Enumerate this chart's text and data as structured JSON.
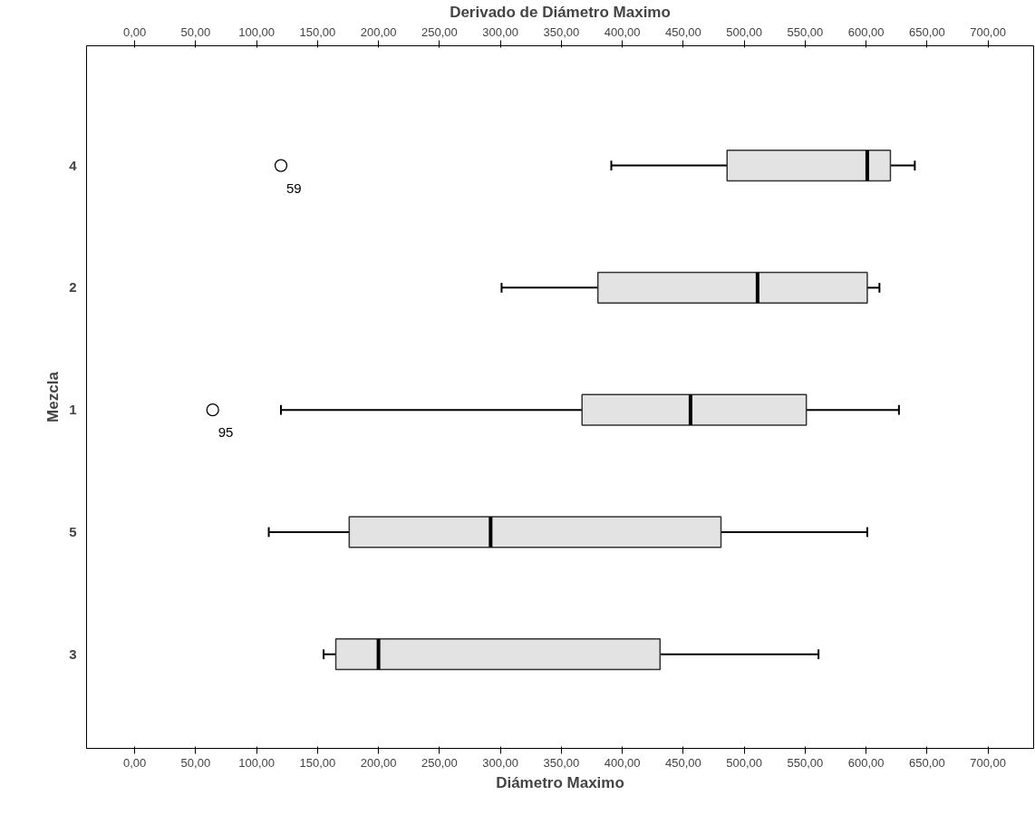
{
  "chart_data": {
    "type": "box",
    "orientation": "horizontal",
    "xlabel": "Diámetro Maximo",
    "ylabel": "Mezcla",
    "x2label": "Derivado de Diámetro Maximo",
    "categories": [
      "4",
      "2",
      "1",
      "5",
      "3"
    ],
    "boxes": [
      {
        "low": 391,
        "q1": 486,
        "median": 601,
        "q3": 620,
        "high": 640,
        "outliers": [
          120
        ]
      },
      {
        "low": 301,
        "q1": 380,
        "median": 511,
        "q3": 601,
        "high": 611
      },
      {
        "low": 120,
        "q1": 367,
        "median": 456,
        "q3": 551,
        "high": 627,
        "outliers": [
          64
        ]
      },
      {
        "low": 110,
        "q1": 176,
        "median": 292,
        "q3": 481,
        "high": 601
      },
      {
        "low": 155,
        "q1": 165,
        "median": 200,
        "q3": 431,
        "high": 561
      }
    ],
    "color": "#e3e3e3",
    "xlim": [
      -39.5,
      737.5
    ],
    "xticks": [
      {
        "value": 0,
        "label": "0,00"
      },
      {
        "value": 50,
        "label": "50,00"
      },
      {
        "value": 100,
        "label": "100,00"
      },
      {
        "value": 150,
        "label": "150,00"
      },
      {
        "value": 200,
        "label": "200,00"
      },
      {
        "value": 250,
        "label": "250,00"
      },
      {
        "value": 300,
        "label": "300,00"
      },
      {
        "value": 350,
        "label": "350,00"
      },
      {
        "value": 400,
        "label": "400,00"
      },
      {
        "value": 450,
        "label": "450,00"
      },
      {
        "value": 500,
        "label": "500,00"
      },
      {
        "value": 550,
        "label": "550,00"
      },
      {
        "value": 600,
        "label": "600,00"
      },
      {
        "value": 650,
        "label": "650,00"
      },
      {
        "value": 700,
        "label": "700,00"
      }
    ],
    "x2lim": [
      -39.5,
      737.5
    ],
    "x2ticks": [
      {
        "value": 0,
        "label": "0,00"
      },
      {
        "value": 50,
        "label": "50,00"
      },
      {
        "value": 100,
        "label": "100,00"
      },
      {
        "value": 150,
        "label": "150,00"
      },
      {
        "value": 200,
        "label": "200,00"
      },
      {
        "value": 250,
        "label": "250,00"
      },
      {
        "value": 300,
        "label": "300,00"
      },
      {
        "value": 350,
        "label": "350,00"
      },
      {
        "value": 400,
        "label": "400,00"
      },
      {
        "value": 450,
        "label": "450,00"
      },
      {
        "value": 500,
        "label": "500,00"
      },
      {
        "value": 550,
        "label": "550,00"
      },
      {
        "value": 600,
        "label": "600,00"
      },
      {
        "value": 650,
        "label": "650,00"
      },
      {
        "value": 700,
        "label": "700,00"
      }
    ],
    "annotations": [
      "59",
      "95"
    ],
    "grid": false
  }
}
